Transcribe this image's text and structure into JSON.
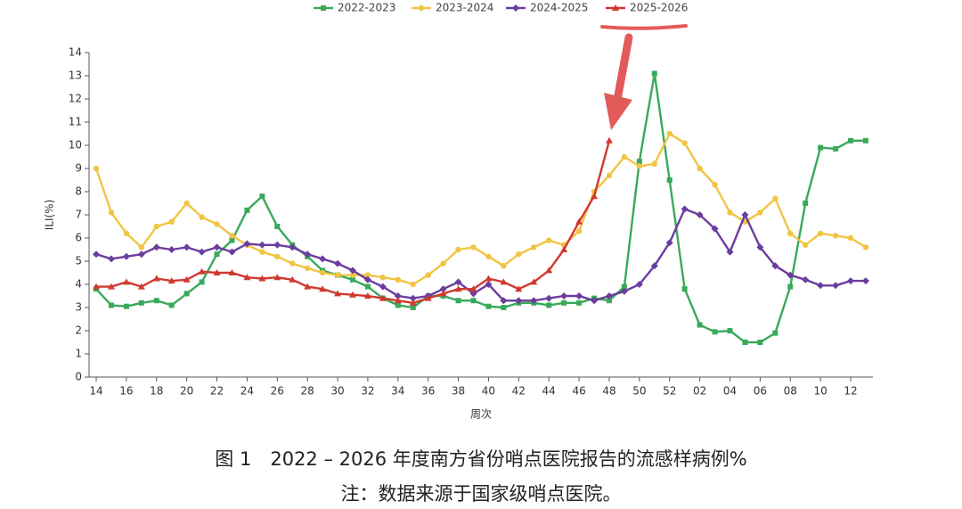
{
  "chart_data": {
    "type": "line",
    "categories": [
      "14",
      null,
      "16",
      null,
      "18",
      null,
      "20",
      null,
      "22",
      null,
      "24",
      null,
      "26",
      null,
      "28",
      null,
      "30",
      null,
      "32",
      null,
      "34",
      null,
      "36",
      null,
      "38",
      null,
      "40",
      null,
      "42",
      null,
      "44",
      null,
      "46",
      null,
      "48",
      null,
      "50",
      null,
      "52",
      null,
      "02",
      null,
      "04",
      null,
      "06",
      null,
      "08",
      null,
      "10",
      null,
      "12",
      null
    ],
    "y_label": "ILI(%)",
    "x_label": "周次",
    "ylim": [
      0,
      14
    ],
    "yticks": [
      0,
      1,
      2,
      3,
      4,
      5,
      6,
      7,
      8,
      9,
      10,
      11,
      12,
      13,
      14
    ],
    "series": [
      {
        "name": "2022-2023",
        "color": "#3aa95a",
        "marker": "square",
        "values": [
          3.8,
          3.1,
          3.05,
          3.2,
          3.3,
          3.1,
          3.6,
          4.1,
          5.3,
          5.9,
          7.2,
          7.8,
          6.5,
          5.7,
          5.2,
          4.6,
          4.4,
          4.2,
          3.9,
          3.4,
          3.1,
          3.0,
          3.5,
          3.5,
          3.3,
          3.3,
          3.05,
          3.0,
          3.2,
          3.2,
          3.1,
          3.2,
          3.2,
          3.4,
          3.3,
          3.9,
          9.3,
          13.1,
          8.5,
          3.8,
          2.25,
          1.95,
          2.0,
          1.5,
          1.5,
          1.9,
          3.9,
          7.5,
          9.9,
          9.85,
          10.2,
          10.2
        ]
      },
      {
        "name": "2023-2024",
        "color": "#f0c543",
        "marker": "circle",
        "values": [
          9.0,
          7.1,
          6.2,
          5.6,
          6.5,
          6.7,
          7.5,
          6.9,
          6.6,
          6.1,
          5.7,
          5.4,
          5.2,
          4.9,
          4.7,
          4.5,
          4.4,
          4.4,
          4.4,
          4.3,
          4.2,
          4.0,
          4.4,
          4.9,
          5.5,
          5.6,
          5.2,
          4.8,
          5.3,
          5.6,
          5.9,
          5.7,
          6.3,
          8.0,
          8.7,
          9.5,
          9.1,
          9.2,
          10.5,
          10.1,
          9.0,
          8.3,
          7.1,
          6.7,
          7.1,
          7.7,
          6.2,
          5.7,
          6.2,
          6.1,
          6.0,
          5.6
        ]
      },
      {
        "name": "2024-2025",
        "color": "#6a3d9e",
        "marker": "diamond",
        "values": [
          5.3,
          5.1,
          5.2,
          5.3,
          5.6,
          5.5,
          5.6,
          5.4,
          5.6,
          5.4,
          5.75,
          5.7,
          5.7,
          5.6,
          5.3,
          5.1,
          4.9,
          4.6,
          4.2,
          3.9,
          3.5,
          3.4,
          3.5,
          3.8,
          4.1,
          3.6,
          4.0,
          3.3,
          3.3,
          3.3,
          3.4,
          3.5,
          3.5,
          3.3,
          3.5,
          3.7,
          4.0,
          4.8,
          5.8,
          7.25,
          7.0,
          6.4,
          5.4,
          7.0,
          5.6,
          4.8,
          4.4,
          4.2,
          3.95,
          3.95,
          4.15,
          4.15
        ]
      },
      {
        "name": "2025-2026",
        "color": "#d0392f",
        "marker": "triangle",
        "values": [
          3.9,
          3.9,
          4.1,
          3.9,
          4.25,
          4.15,
          4.2,
          4.55,
          4.5,
          4.5,
          4.3,
          4.25,
          4.3,
          4.2,
          3.9,
          3.8,
          3.6,
          3.55,
          3.5,
          3.4,
          3.3,
          3.2,
          3.4,
          3.6,
          3.8,
          3.8,
          4.25,
          4.1,
          3.8,
          4.1,
          4.6,
          5.5,
          6.7,
          7.8,
          10.2,
          null,
          null,
          null,
          null,
          null,
          null,
          null,
          null,
          null,
          null,
          null,
          null,
          null,
          null,
          null,
          null,
          null
        ]
      }
    ],
    "caption": "图 1　2022 – 2026 年度南方省份哨点医院报告的流感样病例%",
    "note": "注：数据来源于国家级哨点医院。"
  }
}
